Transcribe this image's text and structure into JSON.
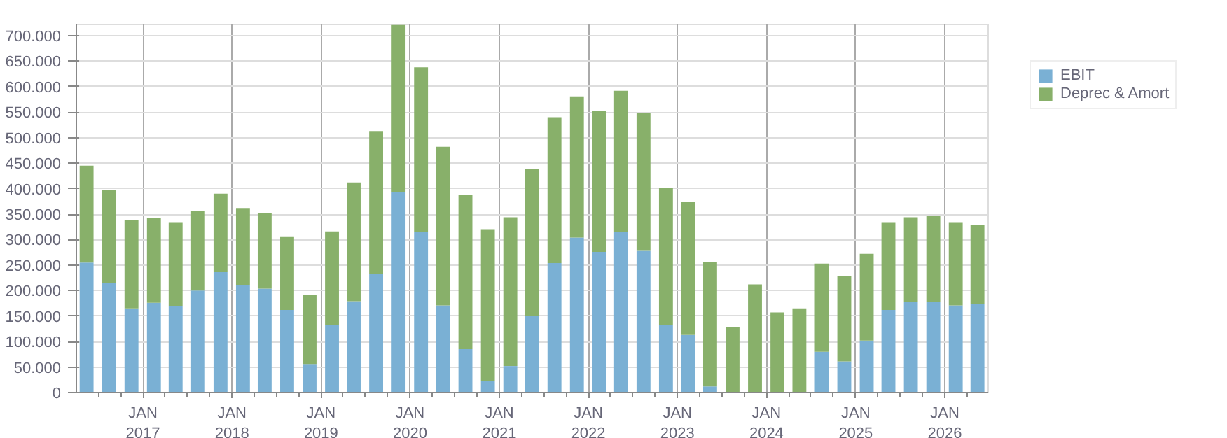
{
  "chart_data": {
    "type": "bar",
    "stacked": true,
    "x": [
      "2016-05-15",
      "2016-08-15",
      "2016-11-15",
      "2017-02-15",
      "2017-05-15",
      "2017-08-15",
      "2017-11-15",
      "2018-02-15",
      "2018-05-15",
      "2018-08-15",
      "2018-11-15",
      "2019-02-15",
      "2019-05-15",
      "2019-08-15",
      "2019-11-15",
      "2020-02-15",
      "2020-05-15",
      "2020-08-15",
      "2020-11-15",
      "2021-02-15",
      "2021-05-15",
      "2021-08-15",
      "2021-11-15",
      "2022-02-15",
      "2022-05-15",
      "2022-08-15",
      "2022-11-15",
      "2023-02-15",
      "2023-05-15",
      "2023-08-15",
      "2023-11-15",
      "2024-02-15",
      "2024-05-15",
      "2024-08-15",
      "2024-11-15",
      "2025-02-15",
      "2025-05-15",
      "2025-08-15",
      "2025-11-15",
      "2026-02-15",
      "2026-05-15"
    ],
    "series": [
      {
        "name": "EBIT",
        "color": "#7ab0d4",
        "values": [
          255000,
          215000,
          165000,
          176000,
          170000,
          200000,
          236000,
          211000,
          204000,
          162000,
          56000,
          133000,
          179000,
          233000,
          393000,
          315000,
          171000,
          85000,
          22000,
          52000,
          151000,
          254000,
          304000,
          276000,
          315000,
          278000,
          133000,
          113000,
          12000,
          0,
          0,
          0,
          0,
          80000,
          61000,
          102000,
          162000,
          177000,
          177000,
          171000,
          173000
        ]
      },
      {
        "name": "Deprec & Amort",
        "color": "#88b06a",
        "values": [
          190000,
          183000,
          173000,
          167000,
          163000,
          157000,
          154000,
          151000,
          148000,
          143000,
          136000,
          183000,
          233000,
          280000,
          328000,
          323000,
          311000,
          303000,
          297000,
          292000,
          287000,
          286000,
          277000,
          277000,
          277000,
          270000,
          269000,
          261000,
          244000,
          129000,
          212000,
          157000,
          165000,
          173000,
          167000,
          170000,
          171000,
          167000,
          170000,
          162000,
          155000
        ]
      }
    ],
    "xlim": [
      "2016-04-03",
      "2026-06-28"
    ],
    "xticks": [
      {
        "value": "2016-07-01",
        "label": null
      },
      {
        "value": "2016-10-01",
        "label": null
      },
      {
        "value": "2017-01-01",
        "label": "JAN\n2017"
      },
      {
        "value": "2017-04-01",
        "label": null
      },
      {
        "value": "2017-07-01",
        "label": null
      },
      {
        "value": "2017-10-01",
        "label": null
      },
      {
        "value": "2018-01-01",
        "label": "JAN\n2018"
      },
      {
        "value": "2018-04-01",
        "label": null
      },
      {
        "value": "2018-07-01",
        "label": null
      },
      {
        "value": "2018-10-01",
        "label": null
      },
      {
        "value": "2019-01-01",
        "label": "JAN\n2019"
      },
      {
        "value": "2019-04-01",
        "label": null
      },
      {
        "value": "2019-07-01",
        "label": null
      },
      {
        "value": "2019-10-01",
        "label": null
      },
      {
        "value": "2020-01-01",
        "label": "JAN\n2020"
      },
      {
        "value": "2020-04-01",
        "label": null
      },
      {
        "value": "2020-07-01",
        "label": null
      },
      {
        "value": "2020-10-01",
        "label": null
      },
      {
        "value": "2021-01-01",
        "label": "JAN\n2021"
      },
      {
        "value": "2021-04-01",
        "label": null
      },
      {
        "value": "2021-07-01",
        "label": null
      },
      {
        "value": "2021-10-01",
        "label": null
      },
      {
        "value": "2022-01-01",
        "label": "JAN\n2022"
      },
      {
        "value": "2022-04-01",
        "label": null
      },
      {
        "value": "2022-07-01",
        "label": null
      },
      {
        "value": "2022-10-01",
        "label": null
      },
      {
        "value": "2023-01-01",
        "label": "JAN\n2023"
      },
      {
        "value": "2023-04-01",
        "label": null
      },
      {
        "value": "2023-07-01",
        "label": null
      },
      {
        "value": "2023-10-01",
        "label": null
      },
      {
        "value": "2024-01-01",
        "label": "JAN\n2024"
      },
      {
        "value": "2024-04-01",
        "label": null
      },
      {
        "value": "2024-07-01",
        "label": null
      },
      {
        "value": "2024-10-01",
        "label": null
      },
      {
        "value": "2025-01-01",
        "label": "JAN\n2025"
      },
      {
        "value": "2025-04-01",
        "label": null
      },
      {
        "value": "2025-07-01",
        "label": null
      },
      {
        "value": "2025-10-01",
        "label": null
      },
      {
        "value": "2026-01-01",
        "label": "JAN\n2026"
      },
      {
        "value": "2026-04-01",
        "label": null
      }
    ],
    "ylim": [
      0,
      722000
    ],
    "yticks": [
      0,
      {
        "value": 50000,
        "label": "50.000"
      },
      {
        "value": 100000,
        "label": "100.000"
      },
      {
        "value": 150000,
        "label": "150.000"
      },
      {
        "value": 200000,
        "label": "200.000"
      },
      {
        "value": 250000,
        "label": "250.000"
      },
      {
        "value": 300000,
        "label": "300.000"
      },
      {
        "value": 350000,
        "label": "350.000"
      },
      {
        "value": 400000,
        "label": "400.000"
      },
      {
        "value": 450000,
        "label": "450.000"
      },
      {
        "value": 500000,
        "label": "500.000"
      },
      {
        "value": 550000,
        "label": "550.000"
      },
      {
        "value": 600000,
        "label": "600.000"
      },
      {
        "value": 650000,
        "label": "650.000"
      },
      {
        "value": 700000,
        "label": "700.000"
      }
    ],
    "grid": true,
    "legend": "top right"
  }
}
